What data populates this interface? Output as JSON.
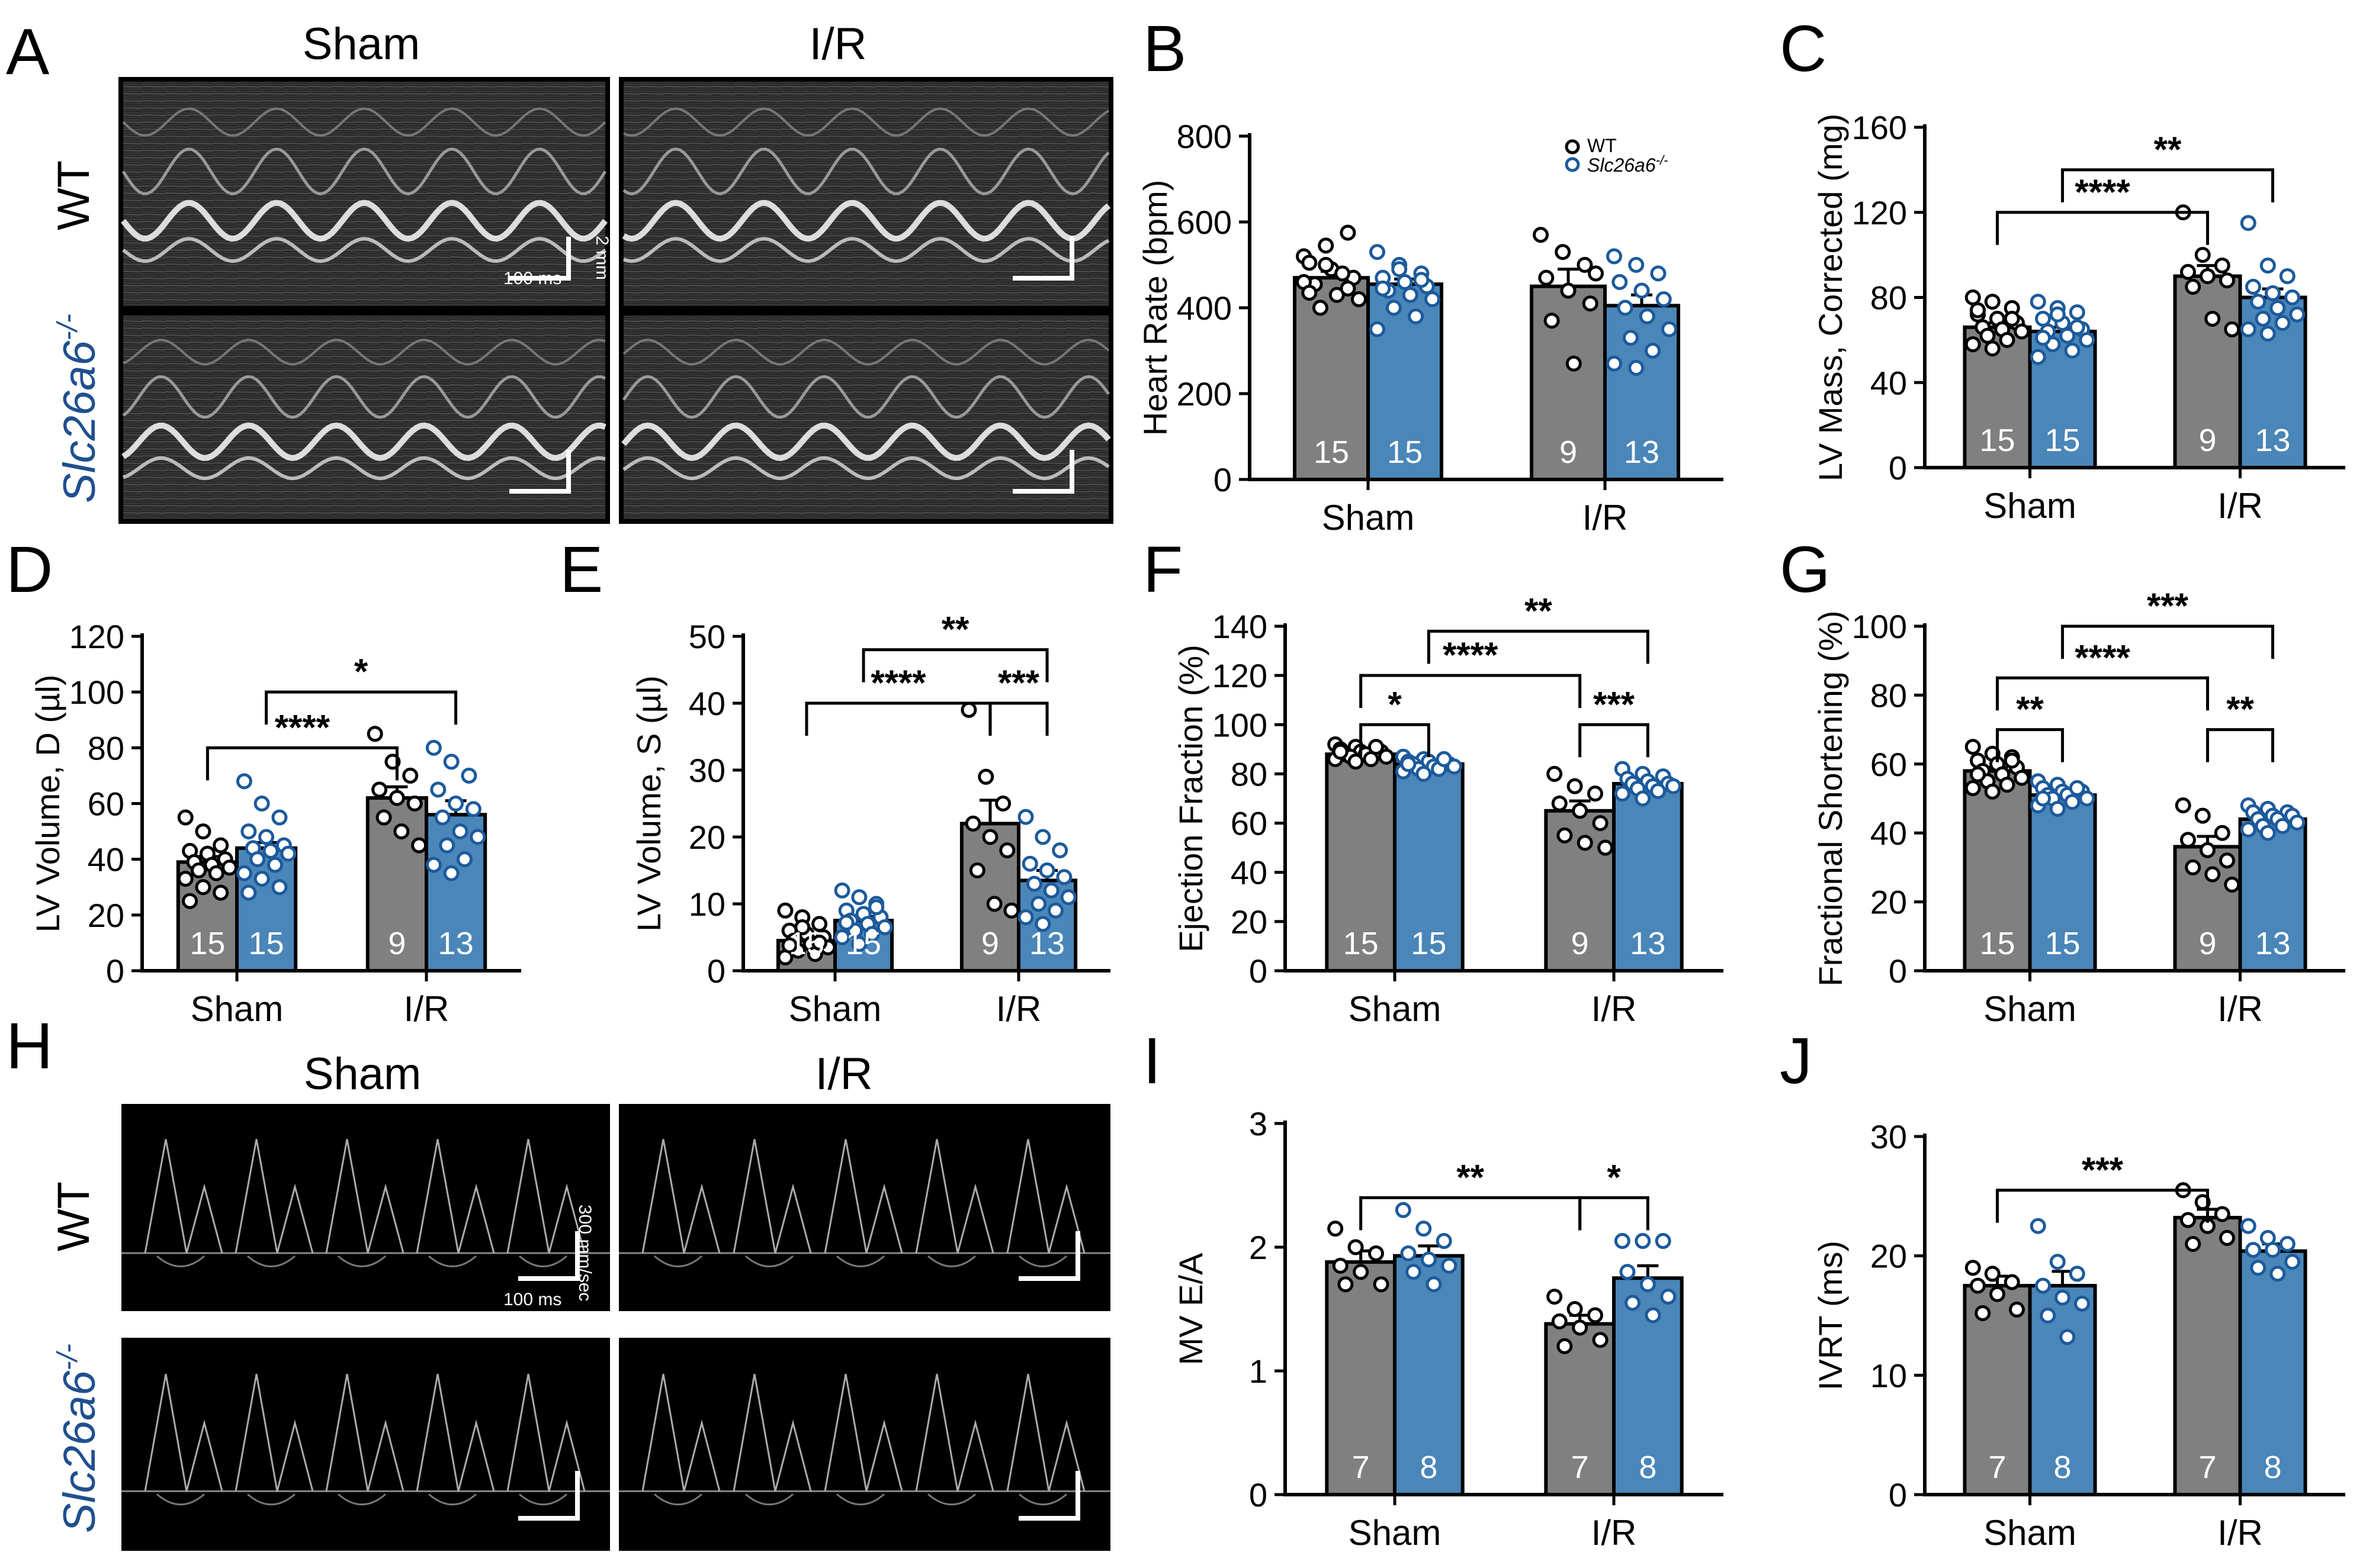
{
  "colors": {
    "wt_fill": "#808080",
    "ko_fill": "#4a86b8",
    "wt_dot": "#ffffff",
    "ko_dot": "#1c5a9c",
    "ko_label": "#1f4f8f",
    "axis": "#000000"
  },
  "image_panels": {
    "echo_A": {
      "letter": "A",
      "col_headers": [
        "Sham",
        "I/R"
      ],
      "row_labels": [
        "WT",
        "Slc26a6"
      ],
      "superscript": "-/-",
      "scale_vertical": "2 mm",
      "scale_horizontal": "100 ms"
    },
    "doppler_H": {
      "letter": "H",
      "col_headers": [
        "Sham",
        "I/R"
      ],
      "row_labels": [
        "WT",
        "Slc26a6"
      ],
      "superscript": "-/-",
      "scale_vertical": "300 mm/sec",
      "scale_horizontal": "100 ms"
    }
  },
  "legend": {
    "wt": "WT",
    "ko": "Slc26a6",
    "ko_sup": "-/-"
  },
  "chart_data": [
    {
      "id": "B",
      "letter": "B",
      "type": "bar",
      "ylabel": "Heart Rate (bpm)",
      "categories": [
        "Sham",
        "I/R"
      ],
      "ylim": [
        0,
        800
      ],
      "yticks": [
        0,
        200,
        400,
        600,
        800
      ],
      "series": [
        {
          "name": "WT",
          "values": [
            470,
            450
          ],
          "sem": [
            15,
            40
          ],
          "n": [
            15,
            9
          ],
          "points": [
            [
              520,
              545,
              575,
              505,
              490,
              470,
              455,
              430,
              420,
              400,
              480,
              460,
              500,
              445,
              435
            ],
            [
              570,
              530,
              500,
              470,
              440,
              410,
              370,
              270,
              480
            ]
          ]
        },
        {
          "name": "Slc26a6-/-",
          "values": [
            455,
            405
          ],
          "sem": [
            12,
            25
          ],
          "n": [
            15,
            13
          ],
          "points": [
            [
              530,
              500,
              480,
              470,
              460,
              450,
              440,
              430,
              420,
              400,
              380,
              350,
              490,
              465,
              445
            ],
            [
              520,
              500,
              480,
              460,
              440,
              420,
              400,
              380,
              350,
              330,
              300,
              270,
              260
            ]
          ]
        }
      ],
      "sig": []
    },
    {
      "id": "C",
      "letter": "C",
      "type": "bar",
      "ylabel": "LV Mass, Corrected (mg)",
      "categories": [
        "Sham",
        "I/R"
      ],
      "ylim": [
        0,
        160
      ],
      "yticks": [
        0,
        40,
        80,
        120,
        160
      ],
      "series": [
        {
          "name": "WT",
          "values": [
            66,
            90
          ],
          "sem": [
            2,
            5
          ],
          "n": [
            15,
            9
          ],
          "points": [
            [
              80,
              78,
              75,
              72,
              70,
              68,
              66,
              65,
              64,
              62,
              60,
              58,
              56,
              70,
              74
            ],
            [
              120,
              100,
              95,
              92,
              90,
              88,
              85,
              70,
              65
            ]
          ]
        },
        {
          "name": "Slc26a6-/-",
          "values": [
            64,
            80
          ],
          "sem": [
            2,
            4
          ],
          "n": [
            15,
            13
          ],
          "points": [
            [
              78,
              75,
              73,
              70,
              68,
              65,
              64,
              62,
              60,
              58,
              55,
              52,
              72,
              66,
              61
            ],
            [
              115,
              95,
              90,
              85,
              82,
              80,
              78,
              75,
              72,
              70,
              68,
              65,
              63
            ]
          ]
        }
      ],
      "sig": [
        {
          "from": [
            0,
            0
          ],
          "to": [
            1,
            0
          ],
          "y": 120,
          "label": "****"
        },
        {
          "from": [
            0,
            1
          ],
          "to": [
            1,
            1
          ],
          "y": 140,
          "label": "**"
        }
      ]
    },
    {
      "id": "D",
      "letter": "D",
      "type": "bar",
      "ylabel": "LV Volume, D (µl)",
      "categories": [
        "Sham",
        "I/R"
      ],
      "ylim": [
        0,
        120
      ],
      "yticks": [
        0,
        20,
        40,
        60,
        80,
        100,
        120
      ],
      "series": [
        {
          "name": "WT",
          "values": [
            39,
            62
          ],
          "sem": [
            2,
            4
          ],
          "n": [
            15,
            9
          ],
          "points": [
            [
              55,
              50,
              45,
              43,
              42,
              40,
              39,
              38,
              37,
              36,
              35,
              33,
              30,
              28,
              25
            ],
            [
              85,
              75,
              70,
              65,
              62,
              60,
              55,
              50,
              45
            ]
          ]
        },
        {
          "name": "Slc26a6-/-",
          "values": [
            44,
            56
          ],
          "sem": [
            2,
            5
          ],
          "n": [
            15,
            13
          ],
          "points": [
            [
              68,
              60,
              55,
              50,
              48,
              45,
              44,
              43,
              42,
              40,
              38,
              35,
              33,
              30,
              28
            ],
            [
              80,
              75,
              70,
              65,
              60,
              58,
              55,
              50,
              48,
              45,
              40,
              38,
              35
            ]
          ]
        }
      ],
      "sig": [
        {
          "from": [
            0,
            0
          ],
          "to": [
            1,
            0
          ],
          "y": 80,
          "label": "****"
        },
        {
          "from": [
            0,
            1
          ],
          "to": [
            1,
            1
          ],
          "y": 100,
          "label": "*"
        }
      ]
    },
    {
      "id": "E",
      "letter": "E",
      "type": "bar",
      "ylabel": "LV Volume, S (µl)",
      "categories": [
        "Sham",
        "I/R"
      ],
      "ylim": [
        0,
        50
      ],
      "yticks": [
        0,
        10,
        20,
        30,
        40,
        50
      ],
      "series": [
        {
          "name": "WT",
          "values": [
            4.5,
            22
          ],
          "sem": [
            0.5,
            3.5
          ],
          "n": [
            15,
            9
          ],
          "points": [
            [
              9,
              8,
              7,
              6,
              5.5,
              5,
              4.5,
              4,
              3.5,
              3,
              2.5,
              2,
              6.5,
              4.2,
              3.8
            ],
            [
              39,
              29,
              25,
              22,
              20,
              18,
              15,
              10,
              9
            ]
          ]
        },
        {
          "name": "Slc26a6-/-",
          "values": [
            7.5,
            13.5
          ],
          "sem": [
            0.6,
            1.5
          ],
          "n": [
            15,
            13
          ],
          "points": [
            [
              12,
              11,
              10,
              9,
              8.5,
              8,
              7.5,
              7,
              6.5,
              6,
              5.5,
              5,
              4,
              9.5,
              7.2
            ],
            [
              23,
              20,
              18,
              16,
              15,
              14,
              13,
              12,
              11,
              10,
              9,
              8,
              7
            ]
          ]
        }
      ],
      "sig": [
        {
          "from": [
            0,
            0
          ],
          "to": [
            1,
            0
          ],
          "y": 40,
          "label": "****"
        },
        {
          "from": [
            1,
            0
          ],
          "to": [
            1,
            1
          ],
          "y": 40,
          "label": "***"
        },
        {
          "from": [
            0,
            1
          ],
          "to": [
            1,
            1
          ],
          "y": 48,
          "label": "**"
        }
      ]
    },
    {
      "id": "F",
      "letter": "F",
      "type": "bar",
      "ylabel": "Ejection Fraction (%)",
      "categories": [
        "Sham",
        "I/R"
      ],
      "ylim": [
        0,
        140
      ],
      "yticks": [
        0,
        20,
        40,
        60,
        80,
        100,
        120,
        140
      ],
      "series": [
        {
          "name": "WT",
          "values": [
            88,
            65
          ],
          "sem": [
            1,
            4
          ],
          "n": [
            15,
            9
          ],
          "points": [
            [
              92,
              91,
              90,
              90,
              89,
              89,
              88,
              88,
              87,
              87,
              86,
              86,
              85,
              91,
              89
            ],
            [
              80,
              75,
              72,
              68,
              65,
              60,
              55,
              52,
              50
            ]
          ]
        },
        {
          "name": "Slc26a6-/-",
          "values": [
            84,
            76
          ],
          "sem": [
            1,
            1.5
          ],
          "n": [
            15,
            13
          ],
          "points": [
            [
              87,
              86,
              86,
              85,
              85,
              84,
              84,
              83,
              83,
              82,
              82,
              81,
              80,
              86,
              84
            ],
            [
              82,
              80,
              79,
              78,
              77,
              76,
              76,
              75,
              75,
              74,
              73,
              72,
              70
            ]
          ]
        }
      ],
      "sig": [
        {
          "from": [
            0,
            0
          ],
          "to": [
            0,
            1
          ],
          "y": 100,
          "label": "*"
        },
        {
          "from": [
            1,
            0
          ],
          "to": [
            1,
            1
          ],
          "y": 100,
          "label": "***"
        },
        {
          "from": [
            0,
            0
          ],
          "to": [
            1,
            0
          ],
          "y": 120,
          "label": "****"
        },
        {
          "from": [
            0,
            1
          ],
          "to": [
            1,
            1
          ],
          "y": 138,
          "label": "**"
        }
      ]
    },
    {
      "id": "G",
      "letter": "G",
      "type": "bar",
      "ylabel": "Fractional Shortening (%)",
      "categories": [
        "Sham",
        "I/R"
      ],
      "ylim": [
        0,
        100
      ],
      "yticks": [
        0,
        20,
        40,
        60,
        80,
        100
      ],
      "series": [
        {
          "name": "WT",
          "values": [
            58,
            36
          ],
          "sem": [
            1,
            3
          ],
          "n": [
            15,
            9
          ],
          "points": [
            [
              65,
              63,
              62,
              61,
              60,
              59,
              58,
              57,
              56,
              55,
              54,
              53,
              52,
              61,
              57
            ],
            [
              48,
              45,
              40,
              38,
              35,
              32,
              30,
              28,
              25
            ]
          ]
        },
        {
          "name": "Slc26a6-/-",
          "values": [
            51,
            44
          ],
          "sem": [
            1,
            1
          ],
          "n": [
            15,
            13
          ],
          "points": [
            [
              55,
              54,
              53,
              53,
              52,
              52,
              51,
              51,
              50,
              50,
              49,
              48,
              47,
              53,
              50
            ],
            [
              48,
              47,
              46,
              46,
              45,
              45,
              44,
              44,
              43,
              42,
              42,
              41,
              40
            ]
          ]
        }
      ],
      "sig": [
        {
          "from": [
            0,
            0
          ],
          "to": [
            0,
            1
          ],
          "y": 70,
          "label": "**"
        },
        {
          "from": [
            1,
            0
          ],
          "to": [
            1,
            1
          ],
          "y": 70,
          "label": "**"
        },
        {
          "from": [
            0,
            0
          ],
          "to": [
            1,
            0
          ],
          "y": 85,
          "label": "****"
        },
        {
          "from": [
            0,
            1
          ],
          "to": [
            1,
            1
          ],
          "y": 100,
          "label": "***"
        }
      ]
    },
    {
      "id": "I",
      "letter": "I",
      "type": "bar",
      "ylabel": "MV E/A",
      "categories": [
        "Sham",
        "I/R"
      ],
      "ylim": [
        0,
        3
      ],
      "yticks": [
        0,
        1,
        2,
        3
      ],
      "series": [
        {
          "name": "WT",
          "values": [
            1.88,
            1.38
          ],
          "sem": [
            0.09,
            0.07
          ],
          "n": [
            7,
            7
          ],
          "points": [
            [
              2.15,
              2.0,
              1.95,
              1.85,
              1.8,
              1.7,
              1.7
            ],
            [
              1.6,
              1.5,
              1.45,
              1.4,
              1.35,
              1.25,
              1.2
            ]
          ]
        },
        {
          "name": "Slc26a6-/-",
          "values": [
            1.93,
            1.75
          ],
          "sem": [
            0.08,
            0.1
          ],
          "n": [
            8,
            8
          ],
          "points": [
            [
              2.3,
              2.15,
              2.05,
              1.95,
              1.9,
              1.85,
              1.8,
              1.7
            ],
            [
              2.05,
              2.05,
              2.05,
              1.8,
              1.7,
              1.6,
              1.55,
              1.45
            ]
          ]
        }
      ],
      "sig": [
        {
          "from": [
            0,
            0
          ],
          "to": [
            1,
            0
          ],
          "y": 2.4,
          "label": "**"
        },
        {
          "from": [
            1,
            0
          ],
          "to": [
            1,
            1
          ],
          "y": 2.4,
          "label": "*"
        }
      ]
    },
    {
      "id": "J",
      "letter": "J",
      "type": "bar",
      "ylabel": "IVRT (ms)",
      "categories": [
        "Sham",
        "I/R"
      ],
      "ylim": [
        0,
        30
      ],
      "yticks": [
        0,
        10,
        20,
        30
      ],
      "series": [
        {
          "name": "WT",
          "values": [
            17.5,
            23.2
          ],
          "sem": [
            0.8,
            0.7
          ],
          "n": [
            7,
            7
          ],
          "points": [
            [
              19,
              18.5,
              17.8,
              17.5,
              16.8,
              15.5,
              15.2
            ],
            [
              25.5,
              24.5,
              23.5,
              23,
              22.5,
              21.5,
              21
            ]
          ]
        },
        {
          "name": "Slc26a6-/-",
          "values": [
            17.5,
            20.4
          ],
          "sem": [
            1.2,
            0.6
          ],
          "n": [
            8,
            8
          ],
          "points": [
            [
              22.5,
              19.5,
              18.5,
              17.5,
              16.5,
              16,
              15,
              13.2
            ],
            [
              22.5,
              21.5,
              21,
              20.5,
              20.5,
              19.5,
              19,
              18.5
            ]
          ]
        }
      ],
      "sig": [
        {
          "from": [
            0,
            0
          ],
          "to": [
            1,
            0
          ],
          "y": 25.5,
          "label": "***"
        }
      ]
    }
  ]
}
